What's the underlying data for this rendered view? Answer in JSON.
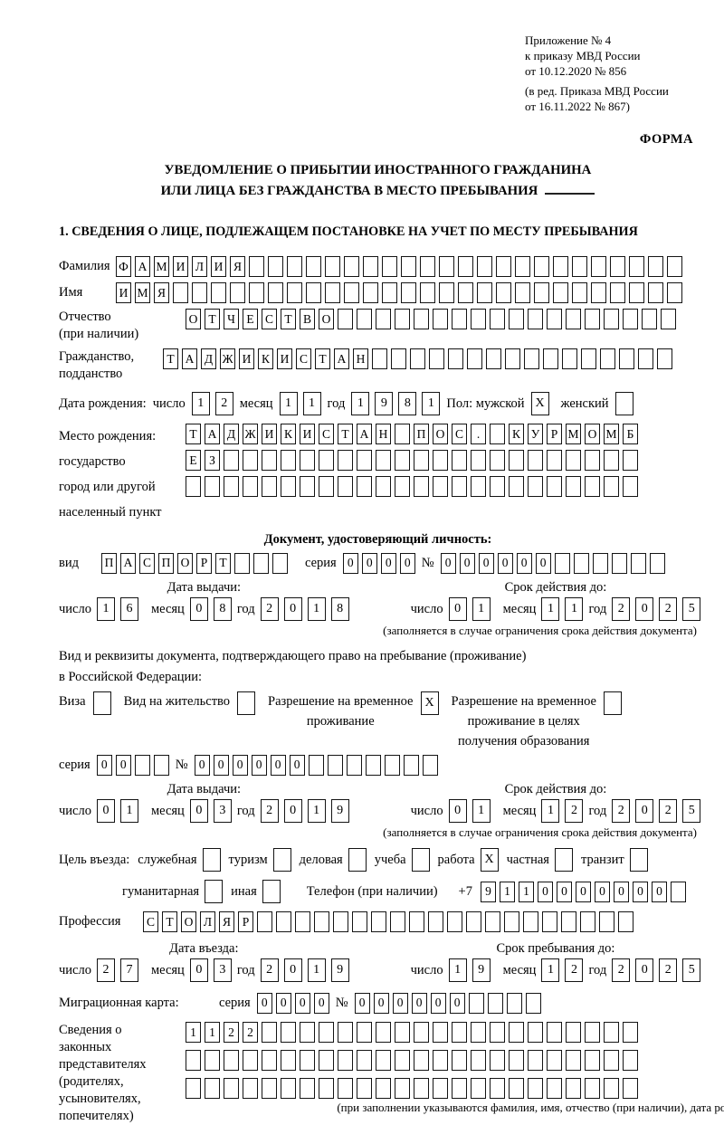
{
  "page": {
    "header_lines": [
      "Приложение № 4",
      "к приказу МВД России",
      "от 10.12.2020 № 856"
    ],
    "header_note_lines": [
      "(в ред. Приказа МВД России",
      "от 16.11.2022 № 867)"
    ],
    "form_label": "ФОРМА",
    "title_line1": "УВЕДОМЛЕНИЕ О ПРИБЫТИИ ИНОСТРАННОГО ГРАЖДАНИНА",
    "title_line2": "ИЛИ ЛИЦА БЕЗ ГРАЖДАНСТВА В МЕСТО ПРЕБЫВАНИЯ",
    "section1_heading": "1. СВЕДЕНИЯ О ЛИЦЕ, ПОДЛЕЖАЩЕМ ПОСТАНОВКЕ НА УЧЕТ ПО МЕСТУ ПРЕБЫВАНИЯ"
  },
  "surname": {
    "label": "Фамилия",
    "cells": {
      "value": "ФАМИЛИЯ",
      "len": 30
    }
  },
  "firstname": {
    "label": "Имя",
    "cells": {
      "value": "ИМЯ",
      "len": 30
    }
  },
  "patronymic": {
    "label_line1": "Отчество",
    "label_line2": "(при наличии)",
    "cells": {
      "value": "ОТЧЕСТВО",
      "len": 26
    }
  },
  "citizenship": {
    "label_line1": "Гражданство,",
    "label_line2": "подданство",
    "cells": {
      "value": "ТАДЖИКИСТАН",
      "len": 27
    }
  },
  "birth_date": {
    "label": "Дата рождения:",
    "day_label": "число",
    "day": {
      "value": "12",
      "len": 2
    },
    "month_label": "месяц",
    "month": {
      "value": "11",
      "len": 2
    },
    "year_label": "год",
    "year": {
      "value": "1981",
      "len": 4
    },
    "sex_label": "Пол: мужской",
    "male": {
      "value": "X",
      "len": 1
    },
    "female_label": "женский",
    "female": {
      "value": "",
      "len": 1
    }
  },
  "birth_place": {
    "label_lines": [
      "Место рождения:",
      "государство",
      "город или другой",
      "населенный пункт"
    ],
    "row1": {
      "value": "ТАДЖИКИСТАН ПОС. КУРМОМБ",
      "len": 24
    },
    "row2": {
      "value": "ЕЗ",
      "len": 24
    },
    "row3": {
      "value": "",
      "len": 24
    }
  },
  "identity_doc": {
    "heading": "Документ, удостоверяющий личность:",
    "kind_label": "вид",
    "kind": {
      "value": "ПАСПОРТ",
      "len": 10
    },
    "series_label": "серия",
    "series": {
      "value": "0000",
      "len": 4
    },
    "number_label": "№",
    "number": {
      "value": "000000",
      "len": 12
    },
    "issue": {
      "title": "Дата выдачи:",
      "day_label": "число",
      "day": {
        "value": "16",
        "len": 2
      },
      "month_label": "месяц",
      "month": {
        "value": "08",
        "len": 2
      },
      "year_label": "год",
      "year": {
        "value": "2018",
        "len": 4
      }
    },
    "expiry": {
      "title": "Срок действия до:",
      "day_label": "число",
      "day": {
        "value": "01",
        "len": 2
      },
      "month_label": "месяц",
      "month": {
        "value": "11",
        "len": 2
      },
      "year_label": "год",
      "year": {
        "value": "2025",
        "len": 4
      }
    },
    "note": "(заполняется в случае ограничения срока действия документа)"
  },
  "residence_doc": {
    "intro_line1": "Вид и реквизиты документа, подтверждающего право на пребывание (проживание)",
    "intro_line2": "в Российской Федерации:",
    "options": [
      {
        "line1": "Виза",
        "line2": "",
        "line3": "",
        "box": {
          "value": "",
          "len": 1
        }
      },
      {
        "line1": "Вид на жительство",
        "line2": "",
        "line3": "",
        "box": {
          "value": "",
          "len": 1
        }
      },
      {
        "line1": "Разрешение на временное",
        "line2": "проживание",
        "line3": "",
        "box": {
          "value": "X",
          "len": 1
        }
      },
      {
        "line1": "Разрешение на временное",
        "line2": "проживание в целях",
        "line3": "получения образования",
        "box": {
          "value": "",
          "len": 1
        }
      }
    ],
    "series_label": "серия",
    "series": {
      "value": "00",
      "len": 4
    },
    "number_label": "№",
    "number": {
      "value": "000000",
      "len": 13
    },
    "issue": {
      "title": "Дата выдачи:",
      "day_label": "число",
      "day": {
        "value": "01",
        "len": 2
      },
      "month_label": "месяц",
      "month": {
        "value": "03",
        "len": 2
      },
      "year_label": "год",
      "year": {
        "value": "2019",
        "len": 4
      }
    },
    "expiry": {
      "title": "Срок действия до:",
      "day_label": "число",
      "day": {
        "value": "01",
        "len": 2
      },
      "month_label": "месяц",
      "month": {
        "value": "12",
        "len": 2
      },
      "year_label": "год",
      "year": {
        "value": "2025",
        "len": 4
      }
    },
    "note": "(заполняется в случае ограничения срока действия документа)"
  },
  "visit_purpose": {
    "label": "Цель въезда:",
    "options_row1": [
      {
        "label": "служебная",
        "box": {
          "value": "",
          "len": 1
        }
      },
      {
        "label": "туризм",
        "box": {
          "value": "",
          "len": 1
        }
      },
      {
        "label": "деловая",
        "box": {
          "value": "",
          "len": 1
        }
      },
      {
        "label": "учеба",
        "box": {
          "value": "",
          "len": 1
        }
      },
      {
        "label": "работа",
        "box": {
          "value": "X",
          "len": 1
        }
      },
      {
        "label": "частная",
        "box": {
          "value": "",
          "len": 1
        }
      },
      {
        "label": "транзит",
        "box": {
          "value": "",
          "len": 1
        }
      }
    ],
    "options_row2": [
      {
        "label": "гуманитарная",
        "box": {
          "value": "",
          "len": 1
        }
      },
      {
        "label": "иная",
        "box": {
          "value": "",
          "len": 1
        }
      }
    ],
    "phone_label": "Телефон (при наличии)",
    "phone_prefix": "+7",
    "phone": {
      "value": "9110000000",
      "len": 11
    }
  },
  "profession": {
    "label": "Профессия",
    "cells": {
      "value": "СТОЛЯР",
      "len": 26
    }
  },
  "entry_dates": {
    "entry": {
      "title": "Дата въезда:",
      "day_label": "число",
      "day": {
        "value": "27",
        "len": 2
      },
      "month_label": "месяц",
      "month": {
        "value": "03",
        "len": 2
      },
      "year_label": "год",
      "year": {
        "value": "2019",
        "len": 4
      }
    },
    "stay": {
      "title": "Срок пребывания до:",
      "day_label": "число",
      "day": {
        "value": "19",
        "len": 2
      },
      "month_label": "месяц",
      "month": {
        "value": "12",
        "len": 2
      },
      "year_label": "год",
      "year": {
        "value": "2025",
        "len": 4
      }
    }
  },
  "migration_card": {
    "label": "Миграционная карта:",
    "series_label": "серия",
    "series": {
      "value": "0000",
      "len": 4
    },
    "number_label": "№",
    "number": {
      "value": "000000",
      "len": 10
    }
  },
  "representatives": {
    "label_lines": [
      "Сведения о",
      "законных",
      "представителях",
      "(родителях,",
      "усыновителях,",
      "попечителях)"
    ],
    "row1": {
      "value": "1122",
      "len": 24
    },
    "row2": {
      "value": "",
      "len": 24
    },
    "row3": {
      "value": "",
      "len": 24
    },
    "note": "(при заполнении указываются фамилия, имя, отчество (при наличии), дата рождения)"
  }
}
